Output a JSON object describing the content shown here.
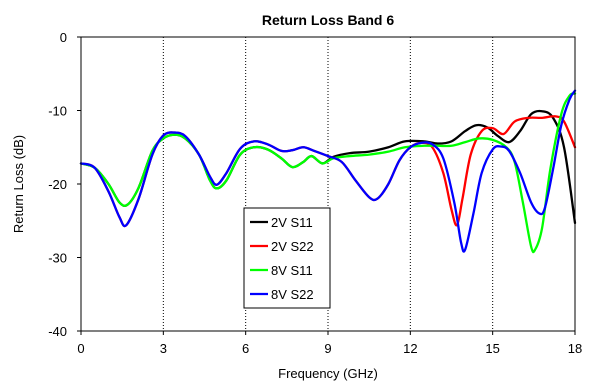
{
  "chart_data": {
    "type": "line",
    "title": "Return Loss Band 6",
    "xlabel": "Frequency (GHz)",
    "ylabel": "Return Loss (dB)",
    "xlim": [
      0,
      18
    ],
    "ylim": [
      -40,
      0
    ],
    "xticks": [
      0,
      3,
      6,
      9,
      12,
      15,
      18
    ],
    "yticks": [
      0,
      -10,
      -20,
      -30,
      -40
    ],
    "grid": "vertical dotted",
    "legend_position": "bottom-center",
    "series": [
      {
        "name": "2V S11",
        "color": "#000000",
        "points": [
          [
            0,
            -17.2
          ],
          [
            0.5,
            -17.8
          ],
          [
            1,
            -20
          ],
          [
            1.4,
            -22.5
          ],
          [
            1.7,
            -22.8
          ],
          [
            2.1,
            -20.5
          ],
          [
            2.6,
            -15.5
          ],
          [
            3,
            -13.8
          ],
          [
            3.4,
            -13.3
          ],
          [
            3.8,
            -13.8
          ],
          [
            4.3,
            -16
          ],
          [
            4.7,
            -19.5
          ],
          [
            4.95,
            -20.6
          ],
          [
            5.3,
            -19.5
          ],
          [
            5.8,
            -16
          ],
          [
            6.3,
            -15
          ],
          [
            6.8,
            -15.3
          ],
          [
            7.3,
            -16.5
          ],
          [
            7.7,
            -17.7
          ],
          [
            8.1,
            -17
          ],
          [
            8.4,
            -16.2
          ],
          [
            8.8,
            -17.2
          ],
          [
            9.2,
            -16.3
          ],
          [
            9.8,
            -15.8
          ],
          [
            10.5,
            -15.6
          ],
          [
            11.2,
            -15
          ],
          [
            11.8,
            -14.2
          ],
          [
            12.5,
            -14.2
          ],
          [
            13,
            -14.5
          ],
          [
            13.5,
            -14.2
          ],
          [
            14,
            -12.8
          ],
          [
            14.4,
            -12
          ],
          [
            14.8,
            -12.3
          ],
          [
            15.2,
            -13.5
          ],
          [
            15.6,
            -14.3
          ],
          [
            16,
            -12.8
          ],
          [
            16.4,
            -10.5
          ],
          [
            16.8,
            -10.1
          ],
          [
            17.2,
            -11
          ],
          [
            17.6,
            -15
          ],
          [
            18,
            -25.3
          ]
        ]
      },
      {
        "name": "2V S22",
        "color": "#ff0000",
        "points": [
          [
            0,
            -17.2
          ],
          [
            0.5,
            -17.8
          ],
          [
            1,
            -21
          ],
          [
            1.4,
            -24.5
          ],
          [
            1.65,
            -25.6
          ],
          [
            2.1,
            -22
          ],
          [
            2.6,
            -16
          ],
          [
            3,
            -13.4
          ],
          [
            3.4,
            -13
          ],
          [
            3.8,
            -13.5
          ],
          [
            4.3,
            -16
          ],
          [
            4.7,
            -19
          ],
          [
            4.95,
            -20.1
          ],
          [
            5.3,
            -18.5
          ],
          [
            5.8,
            -15.2
          ],
          [
            6.3,
            -14.2
          ],
          [
            6.8,
            -14.6
          ],
          [
            7.3,
            -15.5
          ],
          [
            7.7,
            -15.4
          ],
          [
            8.1,
            -15
          ],
          [
            8.5,
            -15.5
          ],
          [
            9,
            -16.2
          ],
          [
            9.5,
            -17
          ],
          [
            10,
            -19.5
          ],
          [
            10.5,
            -21.8
          ],
          [
            10.8,
            -22
          ],
          [
            11.2,
            -20
          ],
          [
            11.6,
            -16.8
          ],
          [
            12,
            -15
          ],
          [
            12.4,
            -14.4
          ],
          [
            12.8,
            -15
          ],
          [
            13.2,
            -18.5
          ],
          [
            13.5,
            -23.5
          ],
          [
            13.7,
            -25.6
          ],
          [
            13.9,
            -22
          ],
          [
            14.2,
            -16
          ],
          [
            14.6,
            -12.8
          ],
          [
            15,
            -12.4
          ],
          [
            15.4,
            -13.2
          ],
          [
            15.8,
            -11.5
          ],
          [
            16.3,
            -11
          ],
          [
            16.8,
            -11
          ],
          [
            17.3,
            -10.8
          ],
          [
            17.6,
            -11.5
          ],
          [
            18,
            -15
          ]
        ]
      },
      {
        "name": "8V S11",
        "color": "#00ff00",
        "points": [
          [
            0,
            -17.2
          ],
          [
            0.5,
            -17.8
          ],
          [
            1,
            -20
          ],
          [
            1.4,
            -22.5
          ],
          [
            1.7,
            -22.8
          ],
          [
            2.1,
            -20.5
          ],
          [
            2.6,
            -15.5
          ],
          [
            3,
            -13.8
          ],
          [
            3.4,
            -13.3
          ],
          [
            3.8,
            -13.8
          ],
          [
            4.3,
            -16
          ],
          [
            4.7,
            -19.5
          ],
          [
            4.95,
            -20.6
          ],
          [
            5.3,
            -19.5
          ],
          [
            5.8,
            -16
          ],
          [
            6.3,
            -15
          ],
          [
            6.8,
            -15.3
          ],
          [
            7.3,
            -16.5
          ],
          [
            7.7,
            -17.7
          ],
          [
            8.1,
            -17
          ],
          [
            8.4,
            -16.2
          ],
          [
            8.8,
            -17.2
          ],
          [
            9.2,
            -16.5
          ],
          [
            9.8,
            -16.2
          ],
          [
            10.5,
            -16
          ],
          [
            11.2,
            -15.6
          ],
          [
            11.8,
            -15
          ],
          [
            12.5,
            -14.8
          ],
          [
            13,
            -14.8
          ],
          [
            13.5,
            -14.8
          ],
          [
            14,
            -14.3
          ],
          [
            14.5,
            -13.8
          ],
          [
            15,
            -14
          ],
          [
            15.5,
            -15
          ],
          [
            15.8,
            -17
          ],
          [
            16.1,
            -22.5
          ],
          [
            16.4,
            -28.5
          ],
          [
            16.55,
            -28.9
          ],
          [
            16.8,
            -26
          ],
          [
            17.1,
            -18
          ],
          [
            17.5,
            -10.5
          ],
          [
            17.8,
            -8
          ],
          [
            18,
            -7.7
          ]
        ]
      },
      {
        "name": "8V S22",
        "color": "#0000ff",
        "points": [
          [
            0,
            -17.2
          ],
          [
            0.5,
            -17.8
          ],
          [
            1,
            -21
          ],
          [
            1.4,
            -24.5
          ],
          [
            1.65,
            -25.6
          ],
          [
            2.1,
            -22
          ],
          [
            2.6,
            -16
          ],
          [
            3,
            -13.4
          ],
          [
            3.4,
            -13
          ],
          [
            3.8,
            -13.5
          ],
          [
            4.3,
            -16
          ],
          [
            4.7,
            -19
          ],
          [
            4.95,
            -20.1
          ],
          [
            5.3,
            -18.5
          ],
          [
            5.8,
            -15.2
          ],
          [
            6.3,
            -14.2
          ],
          [
            6.8,
            -14.6
          ],
          [
            7.3,
            -15.5
          ],
          [
            7.7,
            -15.4
          ],
          [
            8.1,
            -15
          ],
          [
            8.5,
            -15.5
          ],
          [
            9,
            -16.2
          ],
          [
            9.5,
            -17
          ],
          [
            10,
            -19.5
          ],
          [
            10.5,
            -21.8
          ],
          [
            10.8,
            -22
          ],
          [
            11.2,
            -20
          ],
          [
            11.6,
            -16.8
          ],
          [
            12,
            -15
          ],
          [
            12.4,
            -14.4
          ],
          [
            12.8,
            -14.6
          ],
          [
            13.2,
            -16.5
          ],
          [
            13.6,
            -22.5
          ],
          [
            13.85,
            -28
          ],
          [
            14,
            -28.9
          ],
          [
            14.3,
            -24
          ],
          [
            14.6,
            -18.5
          ],
          [
            15,
            -15.3
          ],
          [
            15.3,
            -14.9
          ],
          [
            15.6,
            -15.5
          ],
          [
            16,
            -18.5
          ],
          [
            16.4,
            -22.5
          ],
          [
            16.7,
            -24
          ],
          [
            16.9,
            -23.3
          ],
          [
            17.2,
            -18
          ],
          [
            17.5,
            -12
          ],
          [
            17.8,
            -8.5
          ],
          [
            18,
            -7.3
          ]
        ]
      }
    ]
  }
}
